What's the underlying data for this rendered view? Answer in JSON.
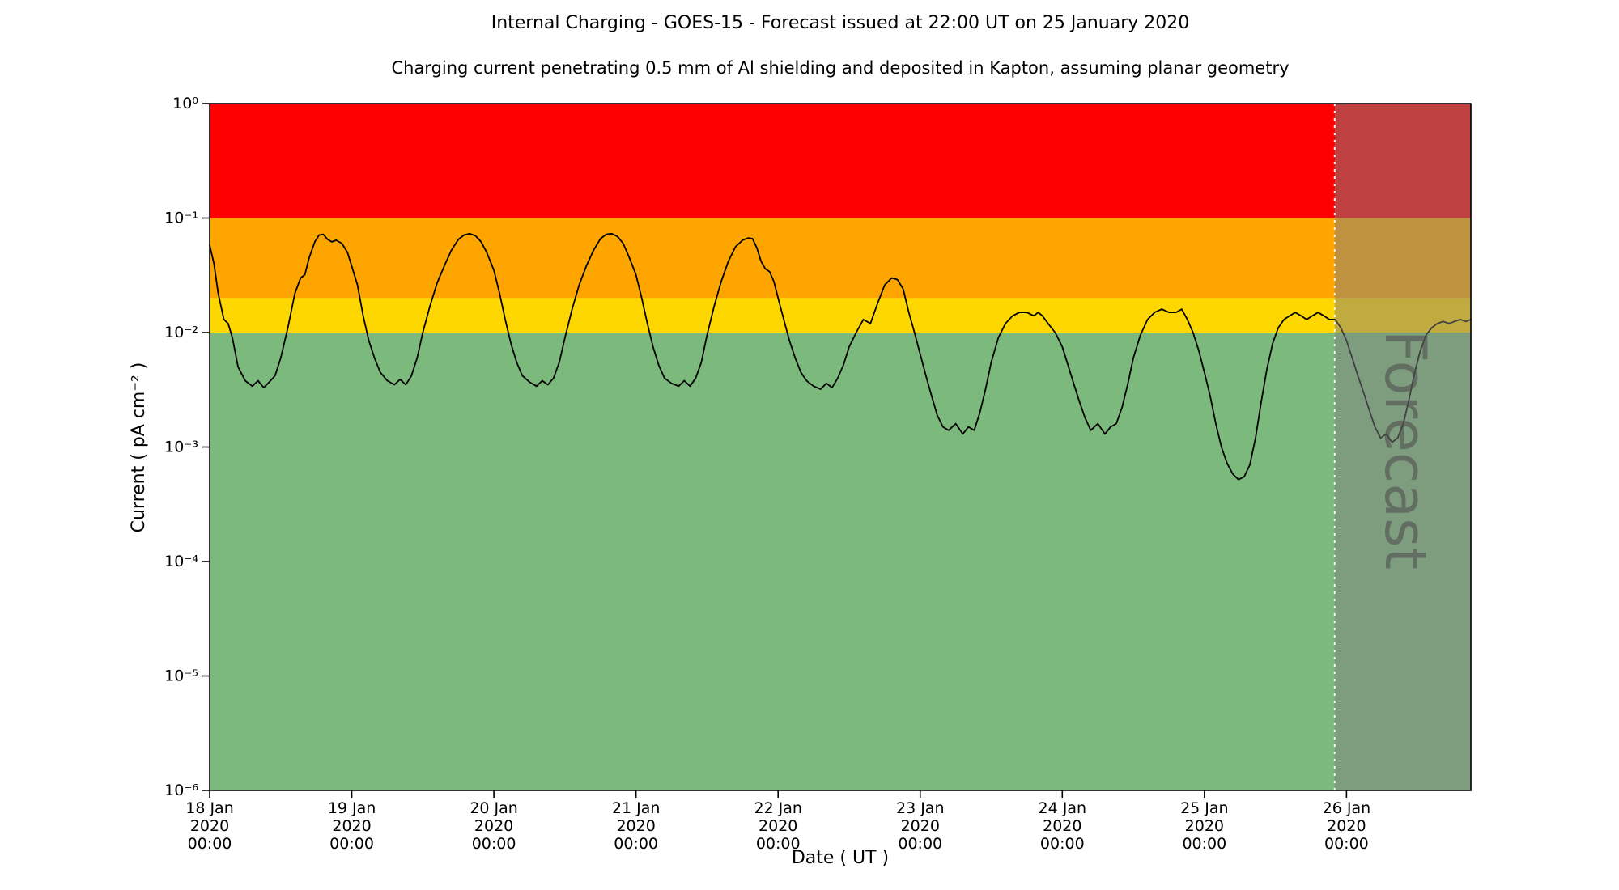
{
  "chart_data": {
    "type": "line",
    "title": "Internal Charging - GOES-15 - Forecast issued at 22:00 UT on 25 January 2020",
    "subtitle": "Charging current penetrating 0.5 mm of Al shielding and deposited in Kapton, assuming planar geometry",
    "xlabel": "Date ( UT )",
    "ylabel": "Current ( pA cm⁻² )",
    "y_scale": "log",
    "ylim": [
      1e-06,
      1
    ],
    "x_range_days": [
      0,
      8.875
    ],
    "grid": false,
    "legend": "none",
    "y_ticks": [
      {
        "value": 1,
        "label": "10⁰"
      },
      {
        "value": 0.1,
        "label": "10⁻¹"
      },
      {
        "value": 0.01,
        "label": "10⁻²"
      },
      {
        "value": 0.001,
        "label": "10⁻³"
      },
      {
        "value": 0.0001,
        "label": "10⁻⁴"
      },
      {
        "value": 1e-05,
        "label": "10⁻⁵"
      },
      {
        "value": 1e-06,
        "label": "10⁻⁶"
      }
    ],
    "x_ticks": [
      {
        "day": 0,
        "labels": [
          "18 Jan",
          "2020",
          "00:00"
        ]
      },
      {
        "day": 1,
        "labels": [
          "19 Jan",
          "2020",
          "00:00"
        ]
      },
      {
        "day": 2,
        "labels": [
          "20 Jan",
          "2020",
          "00:00"
        ]
      },
      {
        "day": 3,
        "labels": [
          "21 Jan",
          "2020",
          "00:00"
        ]
      },
      {
        "day": 4,
        "labels": [
          "22 Jan",
          "2020",
          "00:00"
        ]
      },
      {
        "day": 5,
        "labels": [
          "23 Jan",
          "2020",
          "00:00"
        ]
      },
      {
        "day": 6,
        "labels": [
          "24 Jan",
          "2020",
          "00:00"
        ]
      },
      {
        "day": 7,
        "labels": [
          "25 Jan",
          "2020",
          "00:00"
        ]
      },
      {
        "day": 8,
        "labels": [
          "26 Jan",
          "2020",
          "00:00"
        ]
      }
    ],
    "bands": [
      {
        "name": "red-alert",
        "from": 0.1,
        "to": 1,
        "color": "#FF0000"
      },
      {
        "name": "amber-alert",
        "from": 0.02,
        "to": 0.1,
        "color": "#FFA500"
      },
      {
        "name": "yellow-alert",
        "from": 0.01,
        "to": 0.02,
        "color": "#FFD700"
      },
      {
        "name": "green-quiet",
        "from": 1e-06,
        "to": 0.01,
        "color": "#7CB97C"
      }
    ],
    "forecast": {
      "start_day": 7.9167,
      "label": "Forecast",
      "overlay_color": "#808080",
      "overlay_opacity": 0.5,
      "label_color": "#484848",
      "divider_color": "#ffffff"
    },
    "series": [
      {
        "name": "charging-current",
        "color": "#000000",
        "points": [
          [
            0.0,
            0.058
          ],
          [
            0.03,
            0.04
          ],
          [
            0.06,
            0.022
          ],
          [
            0.1,
            0.013
          ],
          [
            0.13,
            0.012
          ],
          [
            0.16,
            0.009
          ],
          [
            0.2,
            0.005
          ],
          [
            0.25,
            0.0038
          ],
          [
            0.3,
            0.0034
          ],
          [
            0.34,
            0.0038
          ],
          [
            0.38,
            0.0033
          ],
          [
            0.42,
            0.0037
          ],
          [
            0.46,
            0.0042
          ],
          [
            0.5,
            0.006
          ],
          [
            0.55,
            0.011
          ],
          [
            0.6,
            0.022
          ],
          [
            0.64,
            0.03
          ],
          [
            0.67,
            0.032
          ],
          [
            0.7,
            0.045
          ],
          [
            0.74,
            0.062
          ],
          [
            0.77,
            0.071
          ],
          [
            0.8,
            0.072
          ],
          [
            0.83,
            0.065
          ],
          [
            0.86,
            0.062
          ],
          [
            0.89,
            0.064
          ],
          [
            0.93,
            0.06
          ],
          [
            0.97,
            0.05
          ],
          [
            1.0,
            0.038
          ],
          [
            1.04,
            0.026
          ],
          [
            1.08,
            0.014
          ],
          [
            1.12,
            0.0085
          ],
          [
            1.16,
            0.006
          ],
          [
            1.2,
            0.0045
          ],
          [
            1.25,
            0.0038
          ],
          [
            1.3,
            0.0035
          ],
          [
            1.34,
            0.0039
          ],
          [
            1.38,
            0.0035
          ],
          [
            1.42,
            0.0042
          ],
          [
            1.46,
            0.006
          ],
          [
            1.5,
            0.01
          ],
          [
            1.55,
            0.017
          ],
          [
            1.6,
            0.027
          ],
          [
            1.65,
            0.038
          ],
          [
            1.7,
            0.052
          ],
          [
            1.75,
            0.065
          ],
          [
            1.79,
            0.071
          ],
          [
            1.83,
            0.073
          ],
          [
            1.87,
            0.07
          ],
          [
            1.91,
            0.062
          ],
          [
            1.95,
            0.05
          ],
          [
            2.0,
            0.035
          ],
          [
            2.04,
            0.022
          ],
          [
            2.08,
            0.013
          ],
          [
            2.12,
            0.008
          ],
          [
            2.16,
            0.0055
          ],
          [
            2.2,
            0.0042
          ],
          [
            2.25,
            0.0037
          ],
          [
            2.3,
            0.0034
          ],
          [
            2.34,
            0.0038
          ],
          [
            2.38,
            0.0035
          ],
          [
            2.42,
            0.004
          ],
          [
            2.46,
            0.0055
          ],
          [
            2.5,
            0.009
          ],
          [
            2.55,
            0.016
          ],
          [
            2.6,
            0.026
          ],
          [
            2.65,
            0.038
          ],
          [
            2.7,
            0.052
          ],
          [
            2.75,
            0.066
          ],
          [
            2.79,
            0.072
          ],
          [
            2.83,
            0.073
          ],
          [
            2.87,
            0.069
          ],
          [
            2.91,
            0.06
          ],
          [
            2.95,
            0.046
          ],
          [
            3.0,
            0.032
          ],
          [
            3.04,
            0.02
          ],
          [
            3.08,
            0.012
          ],
          [
            3.12,
            0.0075
          ],
          [
            3.16,
            0.0052
          ],
          [
            3.2,
            0.004
          ],
          [
            3.25,
            0.0036
          ],
          [
            3.3,
            0.0034
          ],
          [
            3.34,
            0.0038
          ],
          [
            3.38,
            0.0034
          ],
          [
            3.42,
            0.004
          ],
          [
            3.46,
            0.0055
          ],
          [
            3.5,
            0.0095
          ],
          [
            3.55,
            0.017
          ],
          [
            3.6,
            0.028
          ],
          [
            3.65,
            0.042
          ],
          [
            3.7,
            0.056
          ],
          [
            3.75,
            0.064
          ],
          [
            3.79,
            0.067
          ],
          [
            3.82,
            0.066
          ],
          [
            3.85,
            0.055
          ],
          [
            3.88,
            0.042
          ],
          [
            3.91,
            0.036
          ],
          [
            3.94,
            0.034
          ],
          [
            3.97,
            0.028
          ],
          [
            4.0,
            0.02
          ],
          [
            4.04,
            0.013
          ],
          [
            4.08,
            0.0085
          ],
          [
            4.12,
            0.006
          ],
          [
            4.16,
            0.0045
          ],
          [
            4.2,
            0.0038
          ],
          [
            4.25,
            0.0034
          ],
          [
            4.3,
            0.0032
          ],
          [
            4.34,
            0.0036
          ],
          [
            4.38,
            0.0033
          ],
          [
            4.42,
            0.004
          ],
          [
            4.46,
            0.0052
          ],
          [
            4.5,
            0.0075
          ],
          [
            4.55,
            0.01
          ],
          [
            4.6,
            0.013
          ],
          [
            4.65,
            0.012
          ],
          [
            4.7,
            0.018
          ],
          [
            4.75,
            0.026
          ],
          [
            4.8,
            0.03
          ],
          [
            4.84,
            0.029
          ],
          [
            4.88,
            0.024
          ],
          [
            4.92,
            0.015
          ],
          [
            4.96,
            0.01
          ],
          [
            5.0,
            0.0065
          ],
          [
            5.04,
            0.0042
          ],
          [
            5.08,
            0.0028
          ],
          [
            5.12,
            0.0019
          ],
          [
            5.16,
            0.0015
          ],
          [
            5.2,
            0.0014
          ],
          [
            5.25,
            0.0016
          ],
          [
            5.3,
            0.0013
          ],
          [
            5.34,
            0.0015
          ],
          [
            5.38,
            0.0014
          ],
          [
            5.42,
            0.002
          ],
          [
            5.46,
            0.0032
          ],
          [
            5.5,
            0.0055
          ],
          [
            5.55,
            0.009
          ],
          [
            5.6,
            0.012
          ],
          [
            5.65,
            0.014
          ],
          [
            5.7,
            0.015
          ],
          [
            5.75,
            0.015
          ],
          [
            5.8,
            0.014
          ],
          [
            5.83,
            0.015
          ],
          [
            5.86,
            0.014
          ],
          [
            5.9,
            0.012
          ],
          [
            5.95,
            0.01
          ],
          [
            6.0,
            0.0075
          ],
          [
            6.04,
            0.0052
          ],
          [
            6.08,
            0.0036
          ],
          [
            6.12,
            0.0025
          ],
          [
            6.16,
            0.0018
          ],
          [
            6.2,
            0.0014
          ],
          [
            6.25,
            0.0016
          ],
          [
            6.3,
            0.0013
          ],
          [
            6.34,
            0.0015
          ],
          [
            6.38,
            0.0016
          ],
          [
            6.42,
            0.0022
          ],
          [
            6.46,
            0.0035
          ],
          [
            6.5,
            0.006
          ],
          [
            6.55,
            0.0095
          ],
          [
            6.6,
            0.013
          ],
          [
            6.65,
            0.015
          ],
          [
            6.7,
            0.016
          ],
          [
            6.75,
            0.015
          ],
          [
            6.8,
            0.015
          ],
          [
            6.84,
            0.016
          ],
          [
            6.88,
            0.013
          ],
          [
            6.92,
            0.01
          ],
          [
            6.96,
            0.007
          ],
          [
            7.0,
            0.0045
          ],
          [
            7.04,
            0.0028
          ],
          [
            7.08,
            0.0016
          ],
          [
            7.12,
            0.001
          ],
          [
            7.16,
            0.00072
          ],
          [
            7.2,
            0.00058
          ],
          [
            7.24,
            0.00052
          ],
          [
            7.28,
            0.00055
          ],
          [
            7.32,
            0.0007
          ],
          [
            7.36,
            0.0012
          ],
          [
            7.4,
            0.0025
          ],
          [
            7.44,
            0.0048
          ],
          [
            7.48,
            0.008
          ],
          [
            7.52,
            0.011
          ],
          [
            7.56,
            0.013
          ],
          [
            7.6,
            0.014
          ],
          [
            7.64,
            0.015
          ],
          [
            7.68,
            0.014
          ],
          [
            7.72,
            0.013
          ],
          [
            7.76,
            0.014
          ],
          [
            7.8,
            0.015
          ],
          [
            7.84,
            0.014
          ],
          [
            7.88,
            0.013
          ],
          [
            7.92,
            0.013
          ],
          [
            7.96,
            0.011
          ],
          [
            8.0,
            0.0085
          ],
          [
            8.04,
            0.006
          ],
          [
            8.08,
            0.0042
          ],
          [
            8.12,
            0.003
          ],
          [
            8.16,
            0.0021
          ],
          [
            8.2,
            0.0015
          ],
          [
            8.24,
            0.0012
          ],
          [
            8.28,
            0.0013
          ],
          [
            8.32,
            0.0011
          ],
          [
            8.36,
            0.0012
          ],
          [
            8.4,
            0.0016
          ],
          [
            8.44,
            0.0026
          ],
          [
            8.48,
            0.0045
          ],
          [
            8.52,
            0.007
          ],
          [
            8.56,
            0.0095
          ],
          [
            8.6,
            0.011
          ],
          [
            8.64,
            0.012
          ],
          [
            8.68,
            0.0125
          ],
          [
            8.72,
            0.012
          ],
          [
            8.76,
            0.0125
          ],
          [
            8.8,
            0.013
          ],
          [
            8.84,
            0.0125
          ],
          [
            8.875,
            0.013
          ]
        ]
      }
    ]
  }
}
